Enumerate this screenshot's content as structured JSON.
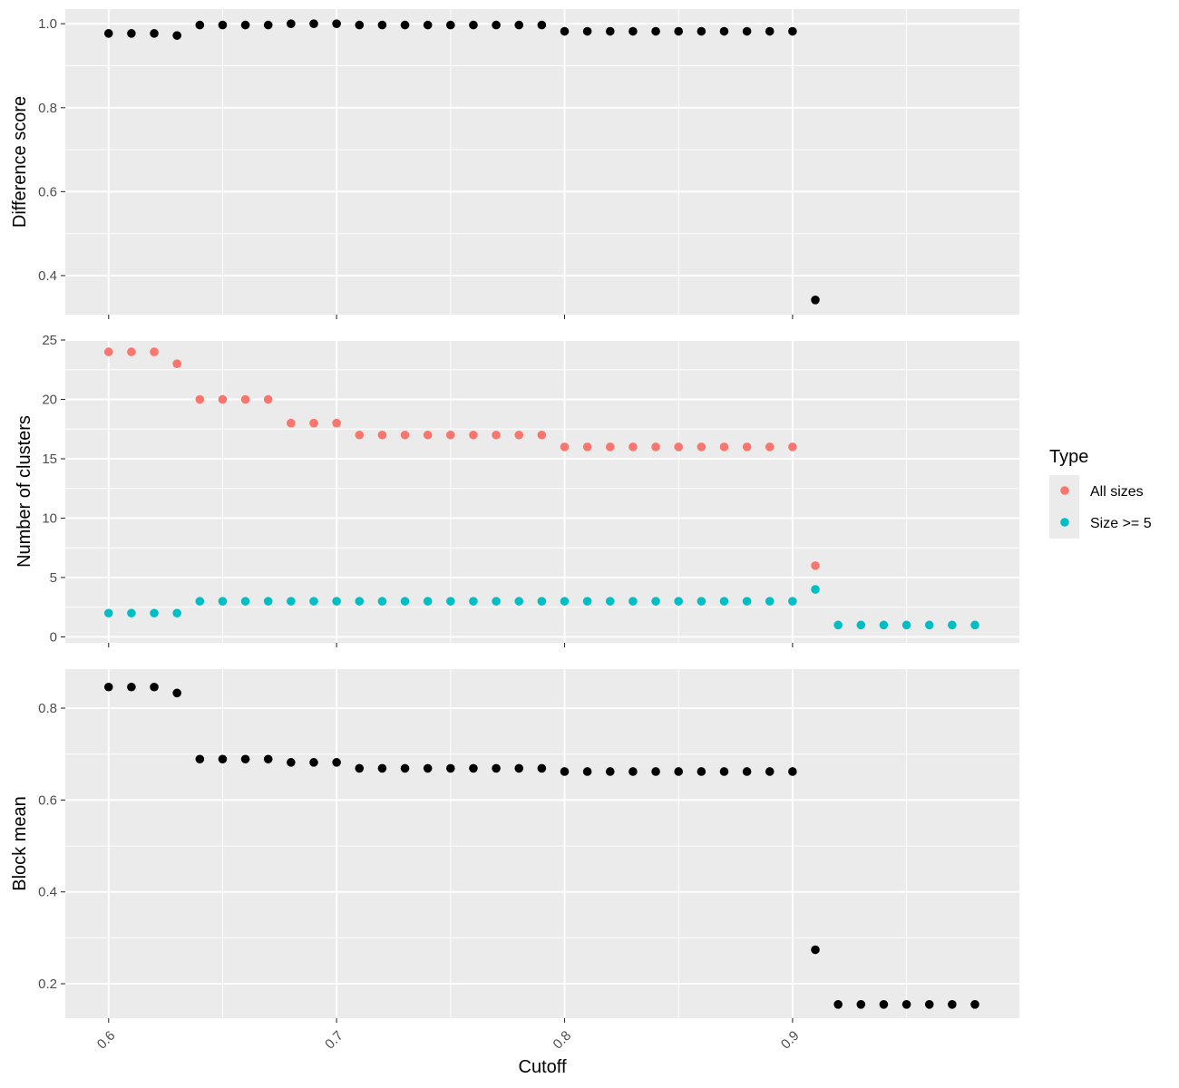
{
  "chart_data": {
    "type": "scatter",
    "xlabel": "Cutoff",
    "xlim": [
      0.581,
      0.9995
    ],
    "x_ticks": [
      0.6,
      0.7,
      0.8,
      0.9
    ],
    "x_tick_labels": [
      "0.6",
      "0.7",
      "0.8",
      "0.9"
    ],
    "grid": true,
    "background_color": "#EBEBEB",
    "legend": {
      "title": "Type",
      "placement": "right",
      "entries": [
        {
          "label": "All sizes",
          "color": "#F8766D"
        },
        {
          "label": "Size >= 5",
          "color": "#00BFC4"
        }
      ]
    },
    "panels": [
      {
        "ylabel": "Difference score",
        "ylim": [
          0.307,
          1.035
        ],
        "y_ticks": [
          0.4,
          0.6,
          0.8,
          1.0
        ],
        "y_tick_labels": [
          "0.4",
          "0.6",
          "0.8",
          "1.0"
        ],
        "series": [
          {
            "color": "#000000",
            "x": [
              0.6,
              0.61,
              0.62,
              0.63,
              0.64,
              0.65,
              0.66,
              0.67,
              0.68,
              0.69,
              0.7,
              0.71,
              0.72,
              0.73,
              0.74,
              0.75,
              0.76,
              0.77,
              0.78,
              0.79,
              0.8,
              0.81,
              0.82,
              0.83,
              0.84,
              0.85,
              0.86,
              0.87,
              0.88,
              0.89,
              0.9,
              0.91
            ],
            "y": [
              0.977,
              0.977,
              0.977,
              0.972,
              0.997,
              0.997,
              0.997,
              0.997,
              1.0,
              1.0,
              1.0,
              0.997,
              0.997,
              0.997,
              0.997,
              0.997,
              0.997,
              0.997,
              0.997,
              0.997,
              0.982,
              0.982,
              0.982,
              0.982,
              0.982,
              0.982,
              0.982,
              0.982,
              0.982,
              0.982,
              0.982,
              0.342
            ]
          }
        ]
      },
      {
        "ylabel": "Number of clusters",
        "ylim": [
          -0.5,
          25
        ],
        "y_ticks": [
          0,
          5,
          10,
          15,
          20,
          25
        ],
        "y_tick_labels": [
          "0",
          "5",
          "10",
          "15",
          "20",
          "25"
        ],
        "series": [
          {
            "name": "All sizes",
            "color": "#F8766D",
            "x": [
              0.6,
              0.61,
              0.62,
              0.63,
              0.64,
              0.65,
              0.66,
              0.67,
              0.68,
              0.69,
              0.7,
              0.71,
              0.72,
              0.73,
              0.74,
              0.75,
              0.76,
              0.77,
              0.78,
              0.79,
              0.8,
              0.81,
              0.82,
              0.83,
              0.84,
              0.85,
              0.86,
              0.87,
              0.88,
              0.89,
              0.9,
              0.91
            ],
            "y": [
              24,
              24,
              24,
              23,
              20,
              20,
              20,
              20,
              18,
              18,
              18,
              17,
              17,
              17,
              17,
              17,
              17,
              17,
              17,
              17,
              16,
              16,
              16,
              16,
              16,
              16,
              16,
              16,
              16,
              16,
              16,
              6
            ]
          },
          {
            "name": "Size >= 5",
            "color": "#00BFC4",
            "x": [
              0.6,
              0.61,
              0.62,
              0.63,
              0.64,
              0.65,
              0.66,
              0.67,
              0.68,
              0.69,
              0.7,
              0.71,
              0.72,
              0.73,
              0.74,
              0.75,
              0.76,
              0.77,
              0.78,
              0.79,
              0.8,
              0.81,
              0.82,
              0.83,
              0.84,
              0.85,
              0.86,
              0.87,
              0.88,
              0.89,
              0.9,
              0.91,
              0.92,
              0.93,
              0.94,
              0.95,
              0.96,
              0.97,
              0.98
            ],
            "y": [
              2,
              2,
              2,
              2,
              3,
              3,
              3,
              3,
              3,
              3,
              3,
              3,
              3,
              3,
              3,
              3,
              3,
              3,
              3,
              3,
              3,
              3,
              3,
              3,
              3,
              3,
              3,
              3,
              3,
              3,
              3,
              4,
              1,
              1,
              1,
              1,
              1,
              1,
              1
            ]
          }
        ]
      },
      {
        "ylabel": "Block mean",
        "ylim": [
          0.125,
          0.885
        ],
        "y_ticks": [
          0.2,
          0.4,
          0.6,
          0.8
        ],
        "y_tick_labels": [
          "0.2",
          "0.4",
          "0.6",
          "0.8"
        ],
        "series": [
          {
            "color": "#000000",
            "x": [
              0.6,
              0.61,
              0.62,
              0.63,
              0.64,
              0.65,
              0.66,
              0.67,
              0.68,
              0.69,
              0.7,
              0.71,
              0.72,
              0.73,
              0.74,
              0.75,
              0.76,
              0.77,
              0.78,
              0.79,
              0.8,
              0.81,
              0.82,
              0.83,
              0.84,
              0.85,
              0.86,
              0.87,
              0.88,
              0.89,
              0.9,
              0.91,
              0.92,
              0.93,
              0.94,
              0.95,
              0.96,
              0.97,
              0.98
            ],
            "y": [
              0.846,
              0.846,
              0.846,
              0.833,
              0.689,
              0.689,
              0.689,
              0.689,
              0.682,
              0.682,
              0.682,
              0.669,
              0.669,
              0.669,
              0.669,
              0.669,
              0.669,
              0.669,
              0.669,
              0.669,
              0.662,
              0.662,
              0.662,
              0.662,
              0.662,
              0.662,
              0.662,
              0.662,
              0.662,
              0.662,
              0.662,
              0.274,
              0.155,
              0.155,
              0.155,
              0.155,
              0.155,
              0.155,
              0.155
            ]
          }
        ]
      }
    ]
  }
}
